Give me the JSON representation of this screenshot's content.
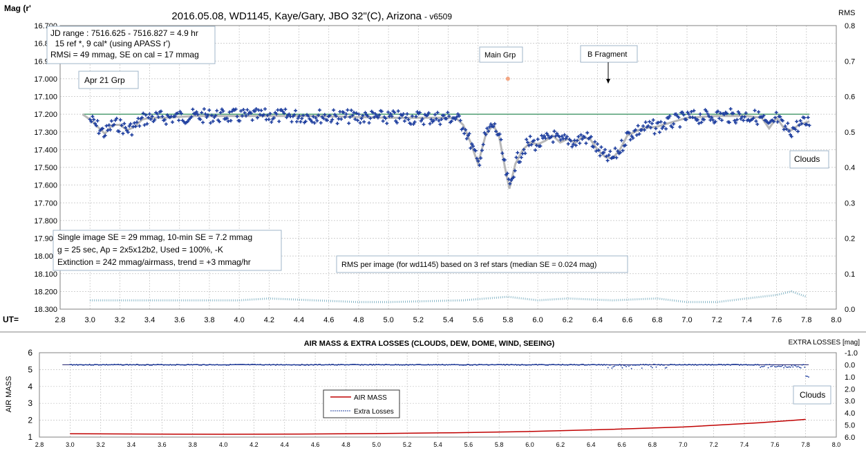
{
  "top": {
    "title": "2016.05.08,  WD1145, Kaye/Gary, JBO 32\"(C), Arizona",
    "version": "- v6509",
    "y_left_title": "Mag (r'",
    "y_right_title": "RMS",
    "x_title": "UT=",
    "info_box": [
      "JD range : 7516.625 - 7516.827  = 4.9 hr",
      "  15 ref *, 9 cal* (using APASS r')",
      "RMSi = 49 mmag, SE on cal = 17 mmag"
    ],
    "stats_box": [
      "Single image SE = 29 mmag, 10-min SE = 7.2 mmag",
      "g = 25 sec, Ap = 2x5x12b2, Used = 100%, -K",
      "Extinction = 242 mmag/airmass, trend = +3 mmag/hr"
    ],
    "annotations": {
      "apr21": "Apr 21 Grp",
      "main_grp": "Main Grp",
      "b_fragment": "B Fragment",
      "clouds": "Clouds",
      "rms_note": "RMS per image (for wd1145) based on 3 ref stars (median SE = 0.024 mag)"
    }
  },
  "bottom": {
    "title": "AIR MASS & EXTRA LOSSES (CLOUDS, DEW, DOME, WIND, SEEING)",
    "y_left_title": "AIR MASS",
    "y_right_title": "EXTRA LOSSES [mag]",
    "legend_airmass": "AIR MASS",
    "legend_losses": "Extra Losses",
    "clouds": "Clouds"
  },
  "colors": {
    "data_points": "#1f3f9f",
    "model_curve": "#b8b8b8",
    "reference_line": "#2e8b57",
    "rms_points": "#8ab8c8",
    "main_grp_marker": "#f4a582",
    "airmass_line": "#c00000",
    "extra_losses": "#1f3f9f"
  },
  "chart_data": [
    {
      "type": "scatter",
      "x_label": "UT",
      "y_label": "Mag (r'",
      "xlim": [
        2.8,
        8.0
      ],
      "ylim": [
        16.7,
        18.3
      ],
      "y_inverted": true,
      "y2lim": [
        0.0,
        0.8
      ],
      "x_ticks": [
        "2.8",
        "3.0",
        "3.2",
        "3.4",
        "3.6",
        "3.8",
        "4.0",
        "4.2",
        "4.4",
        "4.6",
        "4.8",
        "5.0",
        "5.2",
        "5.4",
        "5.6",
        "5.8",
        "6.0",
        "6.2",
        "6.4",
        "6.6",
        "6.8",
        "7.0",
        "7.2",
        "7.4",
        "7.6",
        "7.8",
        "8.0"
      ],
      "y_ticks": [
        "16.700",
        "16.800",
        "16.900",
        "17.000",
        "17.100",
        "17.200",
        "17.300",
        "17.400",
        "17.500",
        "17.600",
        "17.700",
        "17.800",
        "17.900",
        "18.000",
        "18.100",
        "18.200",
        "18.300"
      ],
      "y2_ticks": [
        "0.0",
        "0.1",
        "0.2",
        "0.3",
        "0.4",
        "0.5",
        "0.6",
        "0.7",
        "0.8"
      ],
      "reference_mag": 17.2,
      "main_grp_marker": {
        "x": 5.8,
        "y": 17.0
      },
      "b_fragment_x": 6.5,
      "model_curve": [
        [
          2.95,
          17.2
        ],
        [
          3.0,
          17.23
        ],
        [
          3.05,
          17.27
        ],
        [
          3.1,
          17.31
        ],
        [
          3.15,
          17.26
        ],
        [
          3.2,
          17.26
        ],
        [
          3.25,
          17.29
        ],
        [
          3.3,
          17.27
        ],
        [
          3.35,
          17.23
        ],
        [
          3.4,
          17.22
        ],
        [
          3.5,
          17.22
        ],
        [
          3.7,
          17.21
        ],
        [
          4.0,
          17.21
        ],
        [
          4.5,
          17.21
        ],
        [
          5.0,
          17.22
        ],
        [
          5.3,
          17.22
        ],
        [
          5.45,
          17.22
        ],
        [
          5.5,
          17.26
        ],
        [
          5.55,
          17.36
        ],
        [
          5.6,
          17.48
        ],
        [
          5.65,
          17.32
        ],
        [
          5.7,
          17.26
        ],
        [
          5.74,
          17.32
        ],
        [
          5.78,
          17.5
        ],
        [
          5.81,
          17.62
        ],
        [
          5.85,
          17.48
        ],
        [
          5.9,
          17.4
        ],
        [
          5.95,
          17.36
        ],
        [
          6.0,
          17.37
        ],
        [
          6.05,
          17.35
        ],
        [
          6.1,
          17.32
        ],
        [
          6.15,
          17.36
        ],
        [
          6.2,
          17.34
        ],
        [
          6.25,
          17.36
        ],
        [
          6.3,
          17.33
        ],
        [
          6.35,
          17.34
        ],
        [
          6.4,
          17.4
        ],
        [
          6.45,
          17.44
        ],
        [
          6.5,
          17.45
        ],
        [
          6.55,
          17.4
        ],
        [
          6.6,
          17.32
        ],
        [
          6.7,
          17.28
        ],
        [
          6.8,
          17.27
        ],
        [
          7.0,
          17.22
        ],
        [
          7.2,
          17.21
        ],
        [
          7.4,
          17.21
        ],
        [
          7.5,
          17.22
        ],
        [
          7.55,
          17.28
        ],
        [
          7.6,
          17.22
        ],
        [
          7.65,
          17.28
        ],
        [
          7.7,
          17.29
        ],
        [
          7.75,
          17.26
        ],
        [
          7.82,
          17.24
        ]
      ],
      "rms_trend": [
        [
          3.0,
          0.025
        ],
        [
          3.5,
          0.025
        ],
        [
          4.0,
          0.025
        ],
        [
          4.2,
          0.03
        ],
        [
          4.5,
          0.025
        ],
        [
          4.8,
          0.02
        ],
        [
          5.0,
          0.02
        ],
        [
          5.5,
          0.025
        ],
        [
          5.8,
          0.035
        ],
        [
          6.0,
          0.025
        ],
        [
          6.2,
          0.03
        ],
        [
          6.5,
          0.025
        ],
        [
          6.8,
          0.03
        ],
        [
          7.0,
          0.02
        ],
        [
          7.2,
          0.02
        ],
        [
          7.4,
          0.03
        ],
        [
          7.6,
          0.04
        ],
        [
          7.7,
          0.05
        ],
        [
          7.8,
          0.035
        ]
      ]
    },
    {
      "type": "line",
      "x_label": "",
      "y_label": "AIR MASS",
      "xlim": [
        2.8,
        8.0
      ],
      "ylim": [
        1,
        6
      ],
      "y2_label": "EXTRA LOSSES [mag]",
      "y2lim": [
        -1.0,
        6.0
      ],
      "y2_inverted": true,
      "x_ticks": [
        "2.8",
        "3.0",
        "3.2",
        "3.4",
        "3.6",
        "3.8",
        "4.0",
        "4.2",
        "4.4",
        "4.6",
        "4.8",
        "5.0",
        "5.2",
        "5.4",
        "5.6",
        "5.8",
        "6.0",
        "6.2",
        "6.4",
        "6.6",
        "6.8",
        "7.0",
        "7.2",
        "7.4",
        "7.6",
        "7.8",
        "8.0"
      ],
      "y_ticks": [
        "1",
        "2",
        "3",
        "4",
        "5",
        "6"
      ],
      "y2_ticks": [
        "-1.0",
        "0.0",
        "1.0",
        "2.0",
        "3.0",
        "4.0",
        "5.0",
        "6.0"
      ],
      "series": [
        {
          "name": "AIR MASS",
          "x": [
            3.0,
            3.5,
            4.0,
            4.5,
            5.0,
            5.5,
            6.0,
            6.5,
            7.0,
            7.5,
            7.8
          ],
          "y": [
            1.2,
            1.18,
            1.17,
            1.18,
            1.21,
            1.26,
            1.33,
            1.45,
            1.6,
            1.85,
            2.05
          ]
        },
        {
          "name": "Extra Losses",
          "x": [
            2.95,
            7.82
          ],
          "y": [
            0.0,
            0.0
          ]
        }
      ]
    }
  ]
}
